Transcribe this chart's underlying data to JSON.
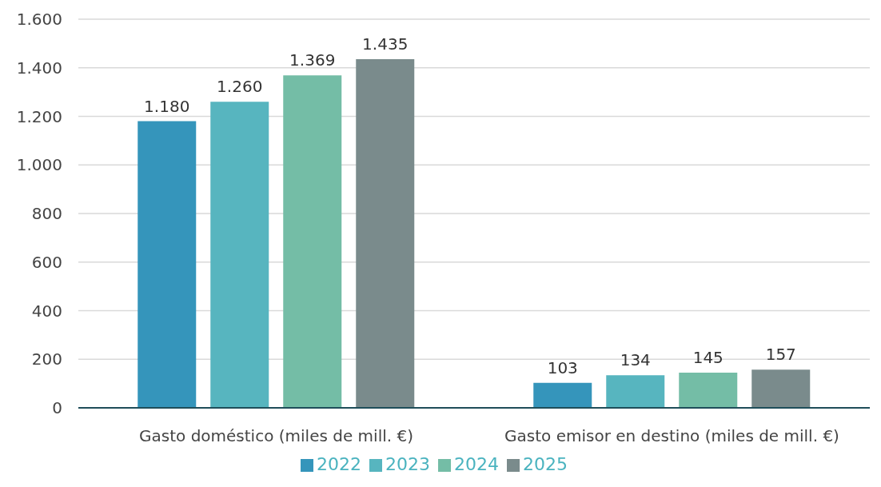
{
  "chart_data": {
    "type": "bar",
    "categories": [
      "Gasto doméstico (miles de mill. €)",
      "Gasto emisor en destino (miles de mill. €)"
    ],
    "series": [
      {
        "name": "2022",
        "color": "#3595bb",
        "values": [
          1180,
          103
        ],
        "value_labels": [
          "1.180",
          "103"
        ]
      },
      {
        "name": "2023",
        "color": "#57b5bf",
        "values": [
          1260,
          134
        ],
        "value_labels": [
          "1.260",
          "134"
        ]
      },
      {
        "name": "2024",
        "color": "#74bda6",
        "values": [
          1369,
          145
        ],
        "value_labels": [
          "1.369",
          "145"
        ]
      },
      {
        "name": "2025",
        "color": "#7a8b8c",
        "values": [
          1435,
          157
        ],
        "value_labels": [
          "1.435",
          "157"
        ]
      }
    ],
    "ylim": [
      0,
      1600
    ],
    "yticks": [
      0,
      200,
      400,
      600,
      800,
      {
        "value": 1000,
        "label": "1.000"
      },
      {
        "value": 1200,
        "label": "1.200"
      },
      {
        "value": 1400,
        "label": "1.400"
      },
      {
        "value": 1600,
        "label": "1.600"
      }
    ],
    "grid": "y",
    "legend": "bottom"
  }
}
